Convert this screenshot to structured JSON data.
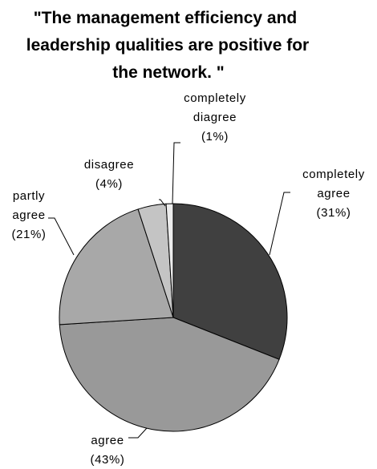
{
  "chart_data": {
    "type": "pie",
    "title_lines": [
      "\"The management efficiency and",
      "leadership qualities are positive for",
      "the network. \""
    ],
    "start_angle_deg": 0,
    "direction": "clockwise",
    "slices": [
      {
        "name": "completely agree",
        "label_lines": [
          "completely",
          "agree",
          "(31%)"
        ],
        "value": 31,
        "color": "#404040"
      },
      {
        "name": "agree",
        "label_lines": [
          "agree",
          "(43%)"
        ],
        "value": 43,
        "color": "#999999"
      },
      {
        "name": "partly agree",
        "label_lines": [
          "partly",
          "agree",
          "(21%)"
        ],
        "value": 21,
        "color": "#a8a8a8"
      },
      {
        "name": "disagree",
        "label_lines": [
          "disagree",
          "(4%)"
        ],
        "value": 4,
        "color": "#c4c4c4"
      },
      {
        "name": "completely diagree",
        "label_lines": [
          "completely",
          "diagree",
          "(1%)"
        ],
        "value": 1,
        "color": "#ececec"
      }
    ]
  }
}
